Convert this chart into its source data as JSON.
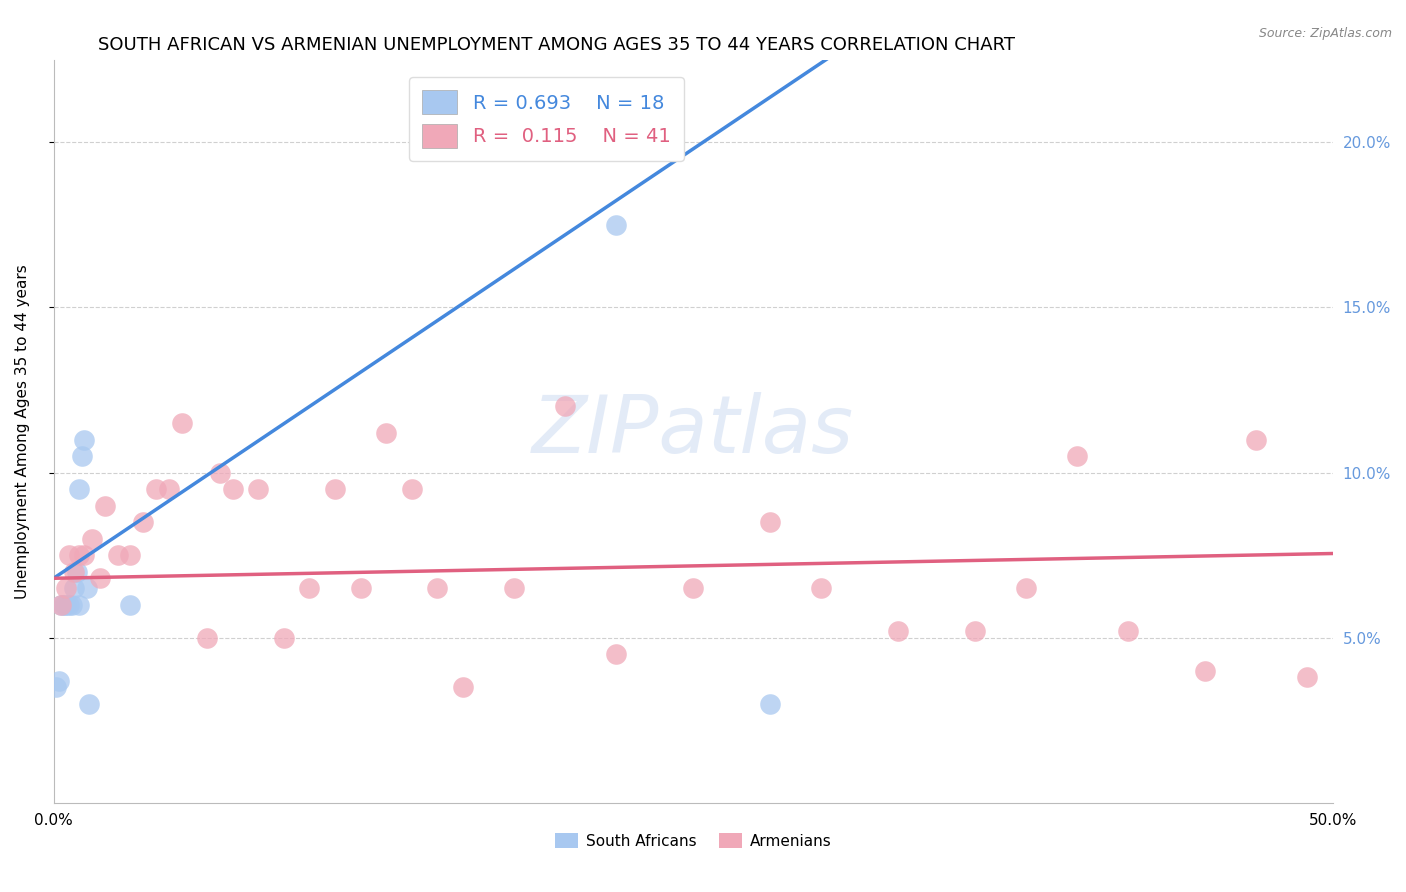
{
  "title": "SOUTH AFRICAN VS ARMENIAN UNEMPLOYMENT AMONG AGES 35 TO 44 YEARS CORRELATION CHART",
  "source": "Source: ZipAtlas.com",
  "ylabel": "Unemployment Among Ages 35 to 44 years",
  "xlim": [
    0.0,
    0.5
  ],
  "ylim": [
    0.0,
    0.225
  ],
  "yticks": [
    0.05,
    0.1,
    0.15,
    0.2
  ],
  "ytick_labels": [
    "5.0%",
    "10.0%",
    "15.0%",
    "20.0%"
  ],
  "xticks": [
    0.0,
    0.1,
    0.2,
    0.3,
    0.4,
    0.5
  ],
  "xtick_labels": [
    "0.0%",
    "",
    "",
    "",
    "",
    "50.0%"
  ],
  "sa_r": "0.693",
  "sa_n": "18",
  "arm_r": "0.115",
  "arm_n": "41",
  "sa_color": "#a8c8f0",
  "arm_color": "#f0a8b8",
  "sa_line_color": "#4488dd",
  "arm_line_color": "#e06080",
  "watermark_color": "#c8d8f0",
  "sa_x": [
    0.001,
    0.002,
    0.003,
    0.004,
    0.005,
    0.006,
    0.007,
    0.008,
    0.009,
    0.01,
    0.01,
    0.011,
    0.012,
    0.013,
    0.014,
    0.03,
    0.22,
    0.28
  ],
  "sa_y": [
    0.035,
    0.037,
    0.06,
    0.06,
    0.06,
    0.06,
    0.06,
    0.065,
    0.07,
    0.06,
    0.095,
    0.105,
    0.11,
    0.065,
    0.03,
    0.06,
    0.175,
    0.03
  ],
  "arm_x": [
    0.003,
    0.005,
    0.006,
    0.008,
    0.01,
    0.012,
    0.015,
    0.018,
    0.02,
    0.025,
    0.03,
    0.035,
    0.04,
    0.045,
    0.05,
    0.06,
    0.065,
    0.07,
    0.08,
    0.09,
    0.1,
    0.11,
    0.12,
    0.13,
    0.14,
    0.15,
    0.16,
    0.18,
    0.2,
    0.22,
    0.25,
    0.28,
    0.3,
    0.33,
    0.36,
    0.38,
    0.4,
    0.42,
    0.45,
    0.47,
    0.49
  ],
  "arm_y": [
    0.06,
    0.065,
    0.075,
    0.07,
    0.075,
    0.075,
    0.08,
    0.068,
    0.09,
    0.075,
    0.075,
    0.085,
    0.095,
    0.095,
    0.115,
    0.05,
    0.1,
    0.095,
    0.095,
    0.05,
    0.065,
    0.095,
    0.065,
    0.112,
    0.095,
    0.065,
    0.035,
    0.065,
    0.12,
    0.045,
    0.065,
    0.085,
    0.065,
    0.052,
    0.052,
    0.065,
    0.105,
    0.052,
    0.04,
    0.11,
    0.038
  ],
  "sa_line_intercept": 0.068,
  "sa_line_slope": 0.52,
  "arm_line_intercept": 0.068,
  "arm_line_slope": 0.015,
  "grid_color": "#d0d0d0",
  "background_color": "#ffffff",
  "title_fontsize": 13,
  "axis_fontsize": 11,
  "tick_fontsize": 11,
  "right_tick_color": "#6699dd",
  "legend_box_color": "#ffffff"
}
